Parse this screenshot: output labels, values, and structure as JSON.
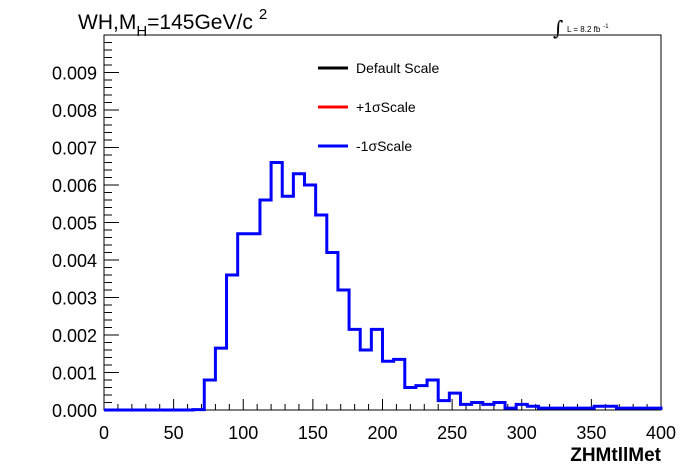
{
  "chart_data": {
    "type": "histogram",
    "title_parts": {
      "main": "WH,M",
      "sub": "H",
      "rest": "=145GeV/c",
      "sup": "2"
    },
    "lumi": {
      "integral_symbol": "∫",
      "text": "L = 8.2 fb",
      "sup": "-1"
    },
    "xlabel": "ZHMtllMet",
    "xlim": [
      0,
      400
    ],
    "ylim": [
      0,
      0.01
    ],
    "x_ticks": [
      0,
      50,
      100,
      150,
      200,
      250,
      300,
      350,
      400
    ],
    "x_tick_labels": [
      "0",
      "50",
      "100",
      "150",
      "200",
      "250",
      "300",
      "350",
      "400"
    ],
    "y_ticks": [
      0,
      0.001,
      0.002,
      0.003,
      0.004,
      0.005,
      0.006,
      0.007,
      0.008,
      0.009
    ],
    "y_tick_labels": [
      "0.000",
      "0.001",
      "0.002",
      "0.003",
      "0.004",
      "0.005",
      "0.006",
      "0.007",
      "0.008",
      "0.009"
    ],
    "bin_width": 8,
    "bin_edges_start": 0,
    "legend": [
      {
        "label": "Default Scale",
        "color": "#000000"
      },
      {
        "label": "+1σScale",
        "color": "#ff0000"
      },
      {
        "label": "-1σScale",
        "color": "#0000ff"
      }
    ],
    "series": [
      {
        "name": "-1σScale",
        "color": "#0000ff",
        "values": [
          0,
          0,
          0,
          0,
          0,
          0,
          0,
          0,
          1e-05,
          0.0008,
          0.00165,
          0.0036,
          0.0047,
          0.0047,
          0.0056,
          0.0066,
          0.0057,
          0.0063,
          0.006,
          0.0052,
          0.0042,
          0.0032,
          0.00215,
          0.0016,
          0.00215,
          0.0013,
          0.00135,
          0.0006,
          0.00065,
          0.0008,
          0.00025,
          0.00045,
          0.00015,
          0.0002,
          0.00015,
          0.0002,
          5e-05,
          0.00015,
          0.0001,
          5e-05,
          5e-05,
          5e-05,
          5e-05,
          5e-05,
          0.0001,
          0.0001,
          5e-05,
          5e-05,
          5e-05,
          5e-05
        ]
      }
    ]
  }
}
